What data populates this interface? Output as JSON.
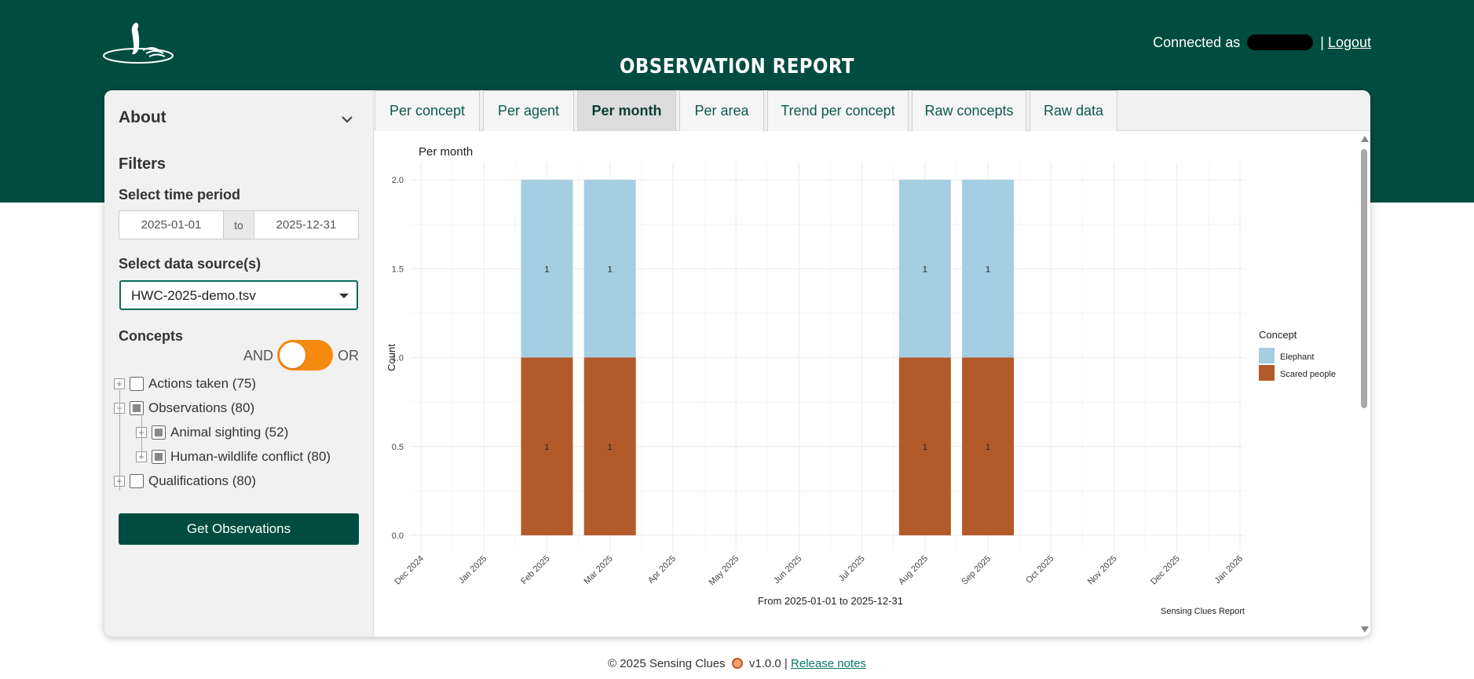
{
  "header": {
    "title": "OBSERVATION REPORT",
    "connected_label": "Connected as",
    "separator": "|",
    "logout": "Logout"
  },
  "sidebar": {
    "about": "About",
    "filters": "Filters",
    "time_label": "Select time period",
    "date_from": "2025-01-01",
    "date_to_sep": "to",
    "date_to": "2025-12-31",
    "source_label": "Select data source(s)",
    "source_value": "HWC-2025-demo.tsv",
    "concepts_label": "Concepts",
    "and_label": "AND",
    "or_label": "OR",
    "tree": [
      {
        "label": "Actions taken (75)",
        "level": 0,
        "state": "unchecked",
        "expand": "+"
      },
      {
        "label": "Observations (80)",
        "level": 0,
        "state": "partial",
        "expand": "−"
      },
      {
        "label": "Animal sighting (52)",
        "level": 1,
        "state": "partial",
        "expand": "+"
      },
      {
        "label": "Human-wildlife conflict (80)",
        "level": 1,
        "state": "partial",
        "expand": "+"
      },
      {
        "label": "Qualifications (80)",
        "level": 0,
        "state": "unchecked",
        "expand": "+"
      }
    ],
    "button": "Get Observations"
  },
  "tabs": [
    {
      "label": "Per concept",
      "active": false
    },
    {
      "label": "Per agent",
      "active": false
    },
    {
      "label": "Per month",
      "active": true
    },
    {
      "label": "Per area",
      "active": false
    },
    {
      "label": "Trend per concept",
      "active": false
    },
    {
      "label": "Raw concepts",
      "active": false
    },
    {
      "label": "Raw data",
      "active": false
    }
  ],
  "colors": {
    "brand": "#004c40",
    "toggle": "#f68a0f",
    "elephant": "#a6cee3",
    "scared": "#b35a2a"
  },
  "chart_data": {
    "type": "bar",
    "stacked": true,
    "title": "Per month",
    "xlabel": "From 2025-01-01 to 2025-12-31",
    "ylabel": "Count",
    "caption": "Sensing Clues Report",
    "ylim": [
      0,
      2
    ],
    "yticks": [
      "0.0",
      "0.5",
      "1.0",
      "1.5",
      "2.0"
    ],
    "ytick_values": [
      0,
      0.5,
      1,
      1.5,
      2
    ],
    "xticks": [
      "Dec 2024",
      "Jan 2025",
      "Feb 2025",
      "Mar 2025",
      "Apr 2025",
      "May 2025",
      "Jun 2025",
      "Jul 2025",
      "Aug 2025",
      "Sep 2025",
      "Oct 2025",
      "Nov 2025",
      "Dec 2025",
      "Jan 2026"
    ],
    "categories": [
      "Feb 2025",
      "Mar 2025",
      "Aug 2025",
      "Sep 2025"
    ],
    "series": [
      {
        "name": "Scared people",
        "values": [
          1,
          1,
          1,
          1
        ],
        "labels": [
          "1",
          "1",
          "1",
          "1"
        ]
      },
      {
        "name": "Elephant",
        "values": [
          1,
          1,
          1,
          1
        ],
        "labels": [
          "1",
          "1",
          "1",
          "1"
        ]
      }
    ],
    "legend_title": "Concept",
    "legend": [
      "Elephant",
      "Scared people"
    ],
    "legend_position": "right"
  },
  "footer": {
    "copyright": "© 2025 Sensing Clues",
    "version": "v1.0.0 |",
    "release_notes": "Release notes"
  }
}
